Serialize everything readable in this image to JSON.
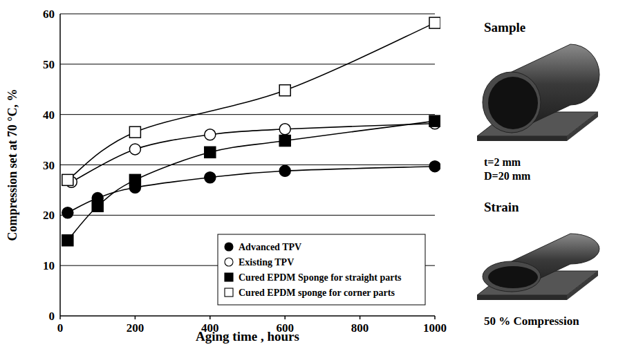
{
  "chart_data": {
    "type": "line",
    "x_label": "Aging time , hours",
    "y_label": "Compression set at 70 °C, %",
    "xlim": [
      0,
      1000
    ],
    "xticks": [
      0,
      200,
      400,
      600,
      800,
      1000
    ],
    "ylim": [
      0,
      60
    ],
    "yticks": [
      0,
      10,
      20,
      30,
      40,
      50,
      60
    ],
    "grid": true,
    "legend": "lower right",
    "series": [
      {
        "name": "Advanced TPV",
        "color": "#000000",
        "marker": "circle",
        "line_style": "solid",
        "x": [
          20,
          100,
          200,
          400,
          600,
          1000
        ],
        "values": [
          20.5,
          23.4,
          25.5,
          27.5,
          28.8,
          29.7
        ]
      },
      {
        "name": "Existing TPV",
        "color": "#000000",
        "marker": "open-circle",
        "line_style": "solid",
        "x": [
          30,
          200,
          400,
          600,
          1000
        ],
        "values": [
          26.6,
          33.1,
          36,
          37.1,
          38.2
        ]
      },
      {
        "name": "Cured EPDM Sponge for straight parts",
        "color": "#000000",
        "marker": "square",
        "line_style": "solid",
        "x": [
          20,
          100,
          200,
          400,
          600,
          1000
        ],
        "values": [
          15,
          21.8,
          27,
          32.5,
          34.8,
          38.7
        ]
      },
      {
        "name": "Cured EPDM sponge for corner parts",
        "color": "#000000",
        "marker": "open-square",
        "line_style": "solid",
        "x": [
          20,
          200,
          600,
          1000
        ],
        "values": [
          27,
          36.5,
          44.8,
          58.2
        ]
      }
    ]
  },
  "illustration": {
    "sample_title": "Sample",
    "thickness": "t=2 mm",
    "diameter": "D=20 mm",
    "strain_title": "Strain",
    "strain_caption": "50 % Compression"
  }
}
